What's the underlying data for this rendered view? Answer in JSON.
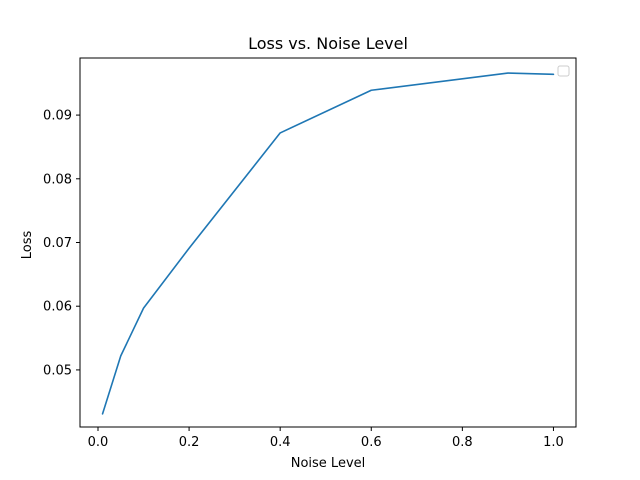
{
  "chart_data": {
    "type": "line",
    "title": "Loss vs. Noise Level",
    "xlabel": "Noise Level",
    "ylabel": "Loss",
    "xlim": [
      -0.0395,
      1.0495
    ],
    "ylim": [
      0.04104,
      0.09896
    ],
    "xticks": [
      0.0,
      0.2,
      0.4,
      0.6,
      0.8,
      1.0
    ],
    "xtick_labels": [
      "0.0",
      "0.2",
      "0.4",
      "0.6",
      "0.8",
      "1.0"
    ],
    "yticks": [
      0.05,
      0.06,
      0.07,
      0.08,
      0.09
    ],
    "ytick_labels": [
      "0.05",
      "0.06",
      "0.07",
      "0.08",
      "0.09"
    ],
    "grid": false,
    "legend": "upper right (empty)",
    "series": [
      {
        "color": "#1f77b4",
        "x": [
          0.01,
          0.05,
          0.1,
          0.2,
          0.4,
          0.6,
          0.9,
          1.0
        ],
        "y": [
          0.0431,
          0.0522,
          0.0597,
          0.0691,
          0.0872,
          0.0939,
          0.0966,
          0.0964
        ]
      }
    ]
  }
}
